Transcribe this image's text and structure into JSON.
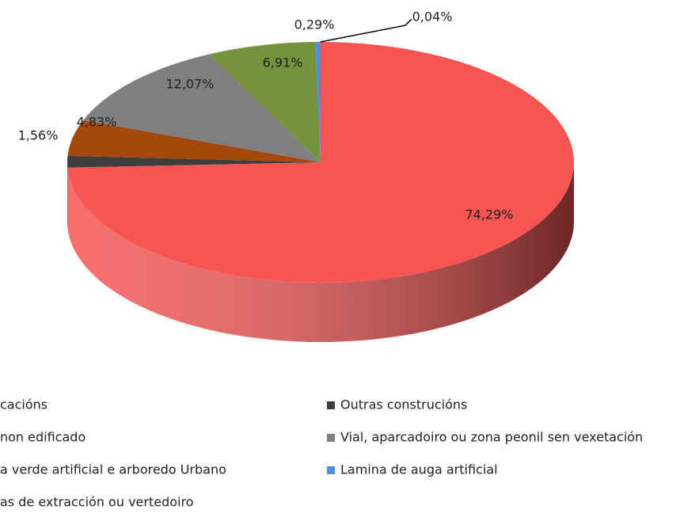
{
  "chart_data": {
    "type": "pie3d",
    "categories": [
      "cacións",
      "Outras construcións",
      "non edificado",
      "Vial, aparcadoiro ou zona peonil sen vexetación",
      "a verde artificial e arboredo Urbano",
      "Lamina de auga artificial",
      "as de extracción ou vertedoiro"
    ],
    "values": [
      74.29,
      1.56,
      4.83,
      12.07,
      6.91,
      0.29,
      0.04
    ],
    "value_labels": [
      "74,29%",
      "1,56%",
      "4,83%",
      "12,07%",
      "6,91%",
      "0,29%",
      "0,04%"
    ],
    "colors": [
      "#f75454",
      "#3d3d3d",
      "#a4480c",
      "#7f7f7f",
      "#76923c",
      "#4f8fdf",
      "#8064a2"
    ]
  }
}
